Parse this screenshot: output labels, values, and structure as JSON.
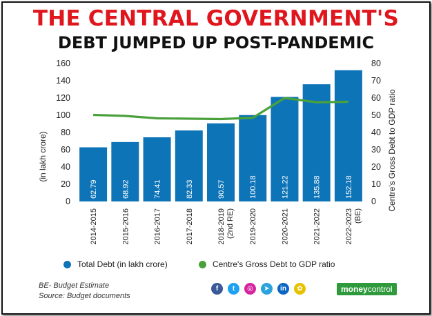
{
  "title_line1": "THE CENTRAL GOVERNMENT'S",
  "title_line2": "DEBT JUMPED UP POST-PANDEMIC",
  "colors": {
    "title_red": "#e0161e",
    "bar_blue": "#0e74b8",
    "line_green": "#4aa13c"
  },
  "chart_data": {
    "type": "bar+line",
    "categories": [
      "2014-2015",
      "2015-2016",
      "2016-2017",
      "2017-2018",
      "2018-2019\n(2nd RE)",
      "2019-2020",
      "2020-2021",
      "2021-2022",
      "2022-2023\n(BE)"
    ],
    "series": [
      {
        "name": "Total Debt (in lakh crore)",
        "type": "bar",
        "axis": "left",
        "values": [
          62.79,
          68.92,
          74.41,
          82.33,
          90.57,
          100.18,
          121.22,
          135.88,
          152.18
        ],
        "labels": [
          "62.79",
          "68.92",
          "74.41",
          "82.33",
          "90.57",
          "100.18",
          "121.22",
          "135.88",
          "152.18"
        ]
      },
      {
        "name": "Centre's Gross Debt to GDP ratio",
        "type": "line",
        "axis": "right",
        "values": [
          50.2,
          49.6,
          48.2,
          48.0,
          47.8,
          48.5,
          60.0,
          57.5,
          57.8
        ]
      }
    ],
    "left_axis": {
      "label": "(in lakh crore)",
      "ticks": [
        0,
        20,
        40,
        60,
        80,
        100,
        120,
        140,
        160
      ],
      "range": [
        0,
        160
      ]
    },
    "right_axis": {
      "label": "Centre's Gross Debt to GDP ratio",
      "ticks": [
        0,
        10,
        20,
        30,
        40,
        50,
        60,
        70,
        80
      ],
      "range": [
        0,
        80
      ]
    },
    "legend_position": "bottom"
  },
  "legend": {
    "bar_label": "Total Debt (in lakh crore)",
    "line_label": "Centre's Gross Debt to GDP ratio"
  },
  "notes": {
    "be": "BE- Budget Estimate",
    "source": "Source: Budget documents"
  },
  "social_icons": [
    {
      "name": "facebook-icon",
      "glyph": "f",
      "color": "#3b5998"
    },
    {
      "name": "twitter-icon",
      "glyph": "t",
      "color": "#1da1f2"
    },
    {
      "name": "instagram-icon",
      "glyph": "◎",
      "color": "#d6249f"
    },
    {
      "name": "telegram-icon",
      "glyph": "➤",
      "color": "#2aa3de"
    },
    {
      "name": "linkedin-icon",
      "glyph": "in",
      "color": "#0a66c2"
    },
    {
      "name": "snapchat-icon",
      "glyph": "✿",
      "color": "#e6c200"
    }
  ],
  "brand": {
    "part1": "money",
    "part2": "control"
  }
}
